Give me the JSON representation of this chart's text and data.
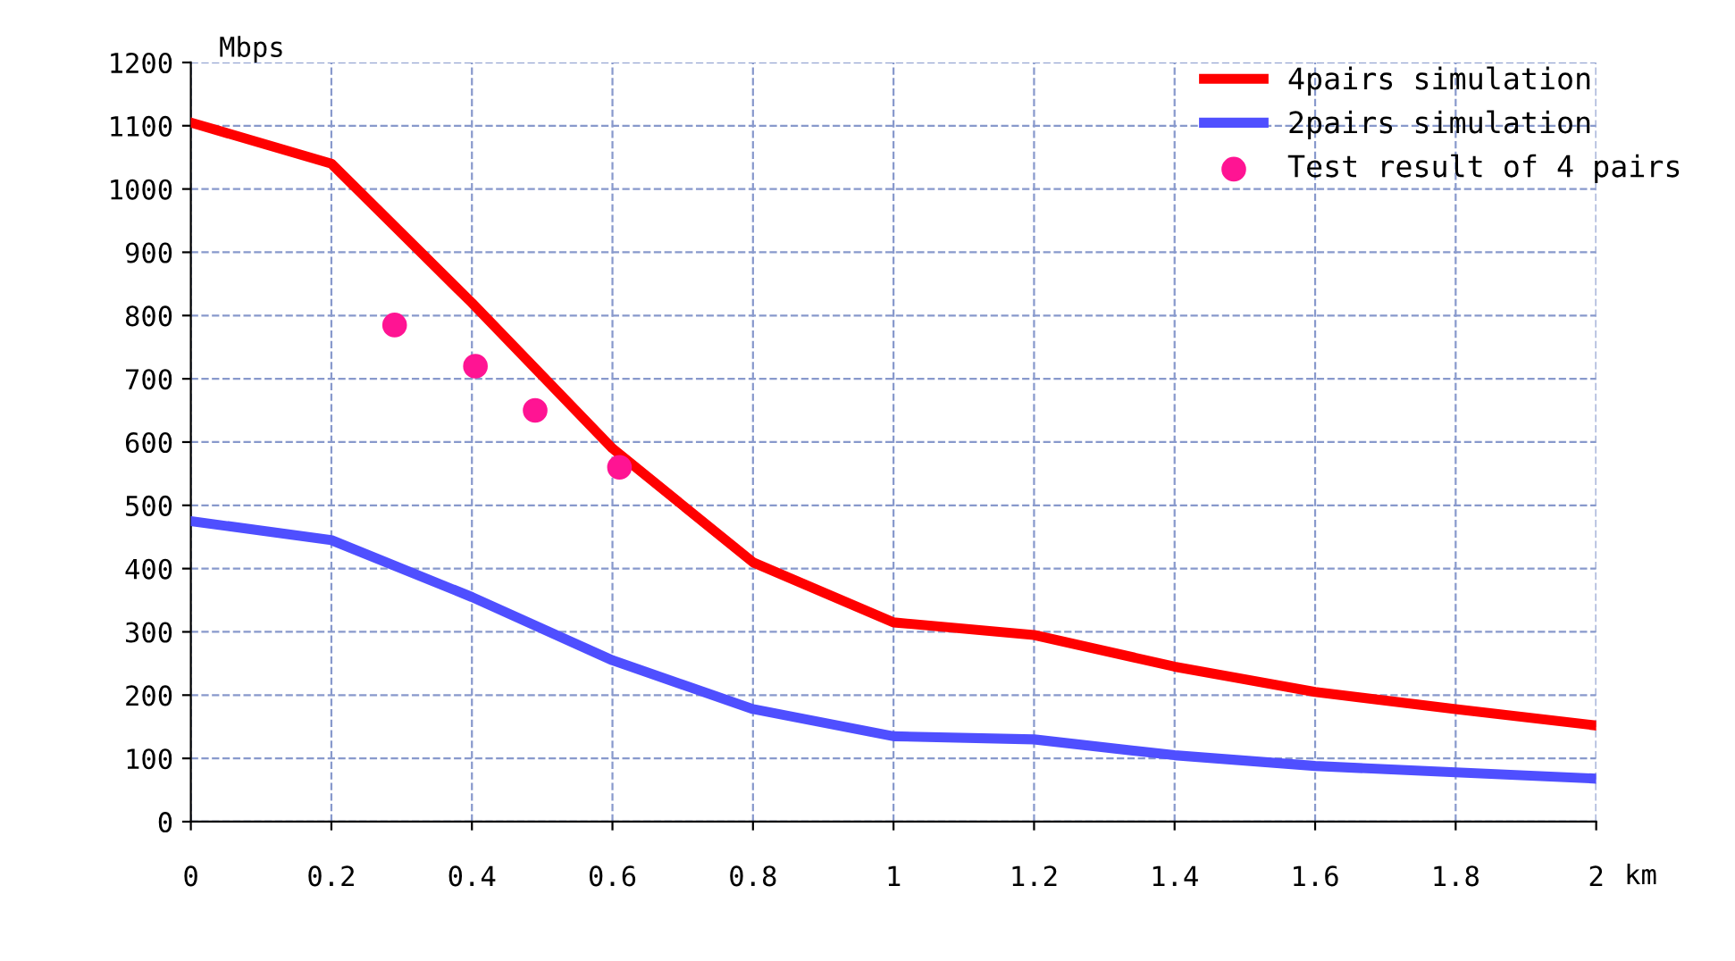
{
  "chart_data": {
    "type": "line",
    "xlabel": "km",
    "ylabel": "Mbps",
    "x": [
      0,
      0.2,
      0.4,
      0.6,
      0.8,
      1,
      1.2,
      1.4,
      1.6,
      1.8,
      2
    ],
    "series": [
      {
        "name": "4pairs simulation",
        "color": "#ff0000",
        "values": [
          1105,
          1040,
          820,
          590,
          410,
          315,
          295,
          245,
          205,
          178,
          152
        ]
      },
      {
        "name": "2pairs simulation",
        "color": "#4f4fff",
        "values": [
          475,
          445,
          355,
          255,
          178,
          135,
          130,
          105,
          88,
          78,
          68
        ]
      },
      {
        "name": "Test result of 4 pairs",
        "type": "scatter",
        "color": "#ff1493",
        "x": [
          0.29,
          0.405,
          0.49,
          0.61
        ],
        "values": [
          785,
          720,
          650,
          560
        ]
      }
    ],
    "xlim": [
      0,
      2
    ],
    "ylim": [
      0,
      1200
    ],
    "xticks": [
      0,
      0.2,
      0.4,
      0.6,
      0.8,
      1,
      1.2,
      1.4,
      1.6,
      1.8,
      2
    ],
    "yticks": [
      0,
      100,
      200,
      300,
      400,
      500,
      600,
      700,
      800,
      900,
      1000,
      1100,
      1200
    ],
    "grid": true,
    "legend": "top right"
  }
}
